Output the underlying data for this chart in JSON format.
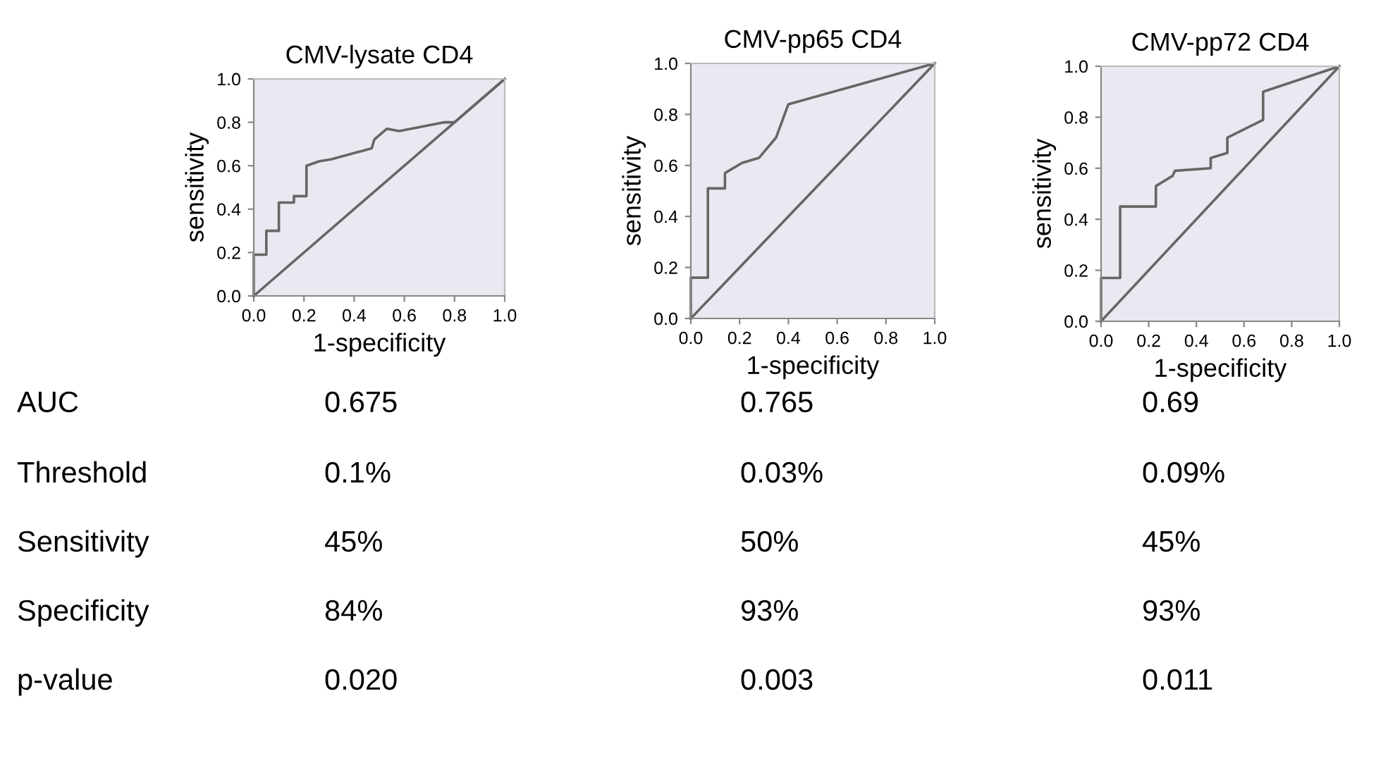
{
  "chart_data": [
    {
      "type": "line",
      "title": "CMV-lysate CD4",
      "xlabel": "1-specificity",
      "ylabel": "sensitivity",
      "xlim": [
        0,
        1
      ],
      "ylim": [
        0,
        1
      ],
      "xticks": [
        {
          "value": 0,
          "label": "0.0"
        },
        {
          "value": 0.2,
          "label": "0.2"
        },
        {
          "value": 0.4,
          "label": "0.4"
        },
        {
          "value": 0.6,
          "label": "0.6"
        },
        {
          "value": 0.8,
          "label": "0.8"
        },
        {
          "value": 1,
          "label": "1.0"
        }
      ],
      "yticks": [
        {
          "value": 0,
          "label": "0.0"
        },
        {
          "value": 0.2,
          "label": "0.2"
        },
        {
          "value": 0.4,
          "label": "0.4"
        },
        {
          "value": 0.6,
          "label": "0.6"
        },
        {
          "value": 0.8,
          "label": "0.8"
        },
        {
          "value": 1,
          "label": "1.0"
        }
      ],
      "grid": false,
      "marker": "none",
      "series": [
        {
          "color": "#666666",
          "x": [
            0,
            0,
            0.05,
            0.05,
            0.1,
            0.1,
            0.16,
            0.16,
            0.21,
            0.21,
            0.26,
            0.31,
            0.47,
            0.48,
            0.53,
            0.58,
            0.76,
            0.8,
            1
          ],
          "values": [
            0,
            0.19,
            0.19,
            0.3,
            0.3,
            0.43,
            0.43,
            0.46,
            0.46,
            0.6,
            0.62,
            0.63,
            0.68,
            0.72,
            0.77,
            0.76,
            0.8,
            0.8,
            1
          ]
        },
        {
          "color": "#666666",
          "x": [
            0,
            1
          ],
          "values": [
            0,
            1
          ]
        }
      ]
    },
    {
      "type": "line",
      "title": "CMV-pp65 CD4",
      "xlabel": "1-specificity",
      "ylabel": "sensitivity",
      "xlim": [
        0,
        1
      ],
      "ylim": [
        0,
        1
      ],
      "xticks": [
        {
          "value": 0,
          "label": "0.0"
        },
        {
          "value": 0.2,
          "label": "0.2"
        },
        {
          "value": 0.4,
          "label": "0.4"
        },
        {
          "value": 0.6,
          "label": "0.6"
        },
        {
          "value": 0.8,
          "label": "0.8"
        },
        {
          "value": 1,
          "label": "1.0"
        }
      ],
      "yticks": [
        {
          "value": 0,
          "label": "0.0"
        },
        {
          "value": 0.2,
          "label": "0.2"
        },
        {
          "value": 0.4,
          "label": "0.4"
        },
        {
          "value": 0.6,
          "label": "0.6"
        },
        {
          "value": 0.8,
          "label": "0.8"
        },
        {
          "value": 1,
          "label": "1.0"
        }
      ],
      "grid": false,
      "marker": "none",
      "series": [
        {
          "color": "#666666",
          "x": [
            0,
            0,
            0.07,
            0.07,
            0.14,
            0.14,
            0.21,
            0.28,
            0.35,
            0.4,
            1
          ],
          "values": [
            0,
            0.16,
            0.16,
            0.51,
            0.51,
            0.57,
            0.61,
            0.63,
            0.71,
            0.84,
            1
          ]
        },
        {
          "color": "#666666",
          "x": [
            0,
            1
          ],
          "values": [
            0,
            1
          ]
        }
      ]
    },
    {
      "type": "line",
      "title": "CMV-pp72 CD4",
      "xlabel": "1-specificity",
      "ylabel": "sensitivity",
      "xlim": [
        0,
        1
      ],
      "ylim": [
        0,
        1
      ],
      "xticks": [
        {
          "value": 0,
          "label": "0.0"
        },
        {
          "value": 0.2,
          "label": "0.2"
        },
        {
          "value": 0.4,
          "label": "0.4"
        },
        {
          "value": 0.6,
          "label": "0.6"
        },
        {
          "value": 0.8,
          "label": "0.8"
        },
        {
          "value": 1,
          "label": "1.0"
        }
      ],
      "yticks": [
        {
          "value": 0,
          "label": "0.0"
        },
        {
          "value": 0.2,
          "label": "0.2"
        },
        {
          "value": 0.4,
          "label": "0.4"
        },
        {
          "value": 0.6,
          "label": "0.6"
        },
        {
          "value": 0.8,
          "label": "0.8"
        },
        {
          "value": 1,
          "label": "1.0"
        }
      ],
      "grid": false,
      "marker": "none",
      "series": [
        {
          "color": "#666666",
          "x": [
            0,
            0,
            0.08,
            0.08,
            0.23,
            0.23,
            0.3,
            0.31,
            0.46,
            0.46,
            0.53,
            0.53,
            0.68,
            0.68,
            1
          ],
          "values": [
            0,
            0.17,
            0.17,
            0.45,
            0.45,
            0.53,
            0.57,
            0.59,
            0.6,
            0.64,
            0.66,
            0.72,
            0.79,
            0.9,
            1
          ]
        },
        {
          "color": "#666666",
          "x": [
            0,
            1
          ],
          "values": [
            0,
            1
          ]
        }
      ]
    },
    {
      "type": "other",
      "annotations": [
        "AUC",
        "0.675",
        "0.765",
        "0.69",
        "Threshold",
        "0.1%",
        "0.03%",
        "0.09%",
        "Sensitivity",
        "45%",
        "50%",
        "45%",
        "Specificity",
        "84%",
        "93%",
        "93%",
        "p-value",
        "0.020",
        "0.003",
        "0.011"
      ]
    }
  ]
}
